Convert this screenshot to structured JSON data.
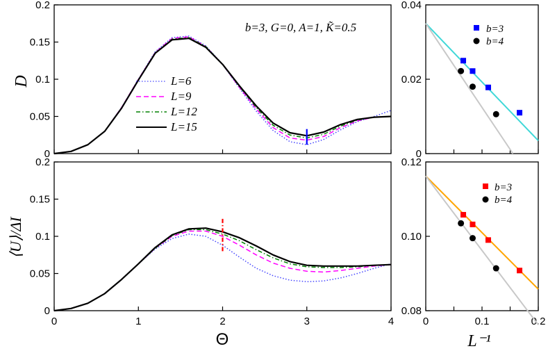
{
  "chart_data": [
    {
      "id": "top_left",
      "type": "line",
      "ylabel": "D",
      "xlabel": "",
      "annotation": "b=3, G=0, A=1, K̃=0.5",
      "xlim": [
        0,
        4
      ],
      "ylim": [
        0,
        0.2
      ],
      "xticks": [
        0,
        1,
        2,
        3,
        4
      ],
      "yticks": [
        "0",
        "0.05",
        "0.1",
        "0.15",
        "0.2"
      ],
      "legend": {
        "placement": "center-left",
        "entries": [
          "L=6",
          "L=9",
          "L=12",
          "L=15"
        ]
      },
      "marker": {
        "x": 3.0,
        "y_from": 0.012,
        "y_to": 0.033,
        "color": "#0000ff"
      },
      "series": [
        {
          "name": "L=6",
          "color": "#4444ff",
          "style": "dotted",
          "x": [
            0,
            0.2,
            0.4,
            0.6,
            0.8,
            1.0,
            1.2,
            1.4,
            1.6,
            1.8,
            2.0,
            2.2,
            2.4,
            2.6,
            2.8,
            3.0,
            3.2,
            3.4,
            3.6,
            3.8,
            4.0
          ],
          "y": [
            0,
            0.003,
            0.012,
            0.03,
            0.062,
            0.1,
            0.137,
            0.156,
            0.158,
            0.145,
            0.12,
            0.088,
            0.057,
            0.031,
            0.016,
            0.012,
            0.019,
            0.032,
            0.043,
            0.05,
            0.058
          ]
        },
        {
          "name": "L=9",
          "color": "#ff00ff",
          "style": "dashed",
          "x": [
            0,
            0.2,
            0.4,
            0.6,
            0.8,
            1.0,
            1.2,
            1.4,
            1.6,
            1.8,
            2.0,
            2.2,
            2.4,
            2.6,
            2.8,
            3.0,
            3.2,
            3.4,
            3.6,
            3.8,
            4.0
          ],
          "y": [
            0,
            0.003,
            0.012,
            0.03,
            0.062,
            0.1,
            0.136,
            0.155,
            0.157,
            0.144,
            0.12,
            0.089,
            0.06,
            0.035,
            0.021,
            0.018,
            0.023,
            0.035,
            0.044,
            0.049,
            0.05
          ]
        },
        {
          "name": "L=12",
          "color": "#008000",
          "style": "dashdot",
          "x": [
            0,
            0.2,
            0.4,
            0.6,
            0.8,
            1.0,
            1.2,
            1.4,
            1.6,
            1.8,
            2.0,
            2.2,
            2.4,
            2.6,
            2.8,
            3.0,
            3.2,
            3.4,
            3.6,
            3.8,
            4.0
          ],
          "y": [
            0,
            0.003,
            0.012,
            0.03,
            0.061,
            0.099,
            0.135,
            0.154,
            0.156,
            0.144,
            0.12,
            0.09,
            0.062,
            0.038,
            0.025,
            0.021,
            0.026,
            0.037,
            0.045,
            0.049,
            0.05
          ]
        },
        {
          "name": "L=15",
          "color": "#000000",
          "style": "solid",
          "x": [
            0,
            0.2,
            0.4,
            0.6,
            0.8,
            1.0,
            1.2,
            1.4,
            1.6,
            1.8,
            2.0,
            2.2,
            2.4,
            2.6,
            2.8,
            3.0,
            3.2,
            3.4,
            3.6,
            3.8,
            4.0
          ],
          "y": [
            0,
            0.003,
            0.012,
            0.03,
            0.061,
            0.099,
            0.135,
            0.153,
            0.155,
            0.143,
            0.12,
            0.091,
            0.064,
            0.041,
            0.028,
            0.024,
            0.029,
            0.039,
            0.046,
            0.049,
            0.05
          ]
        }
      ]
    },
    {
      "id": "bottom_left",
      "type": "line",
      "ylabel": "⟨U⟩/ΔI",
      "xlabel": "Θ",
      "xlim": [
        0,
        4
      ],
      "ylim": [
        0,
        0.2
      ],
      "xticks": [
        0,
        1,
        2,
        3,
        4
      ],
      "yticks": [
        "0",
        "0.05",
        "0.1",
        "0.15",
        "0.2"
      ],
      "marker": {
        "x": 2.0,
        "y_from": 0.08,
        "y_to": 0.126,
        "color": "#ff0000"
      },
      "series": [
        {
          "name": "L=6",
          "color": "#4444ff",
          "style": "dotted",
          "x": [
            0,
            0.2,
            0.4,
            0.6,
            0.8,
            1.0,
            1.2,
            1.4,
            1.6,
            1.8,
            2.0,
            2.2,
            2.4,
            2.6,
            2.8,
            3.0,
            3.2,
            3.4,
            3.6,
            3.8,
            4.0
          ],
          "y": [
            0,
            0.003,
            0.01,
            0.023,
            0.042,
            0.063,
            0.083,
            0.097,
            0.103,
            0.1,
            0.088,
            0.072,
            0.057,
            0.047,
            0.041,
            0.039,
            0.04,
            0.044,
            0.05,
            0.057,
            0.063
          ]
        },
        {
          "name": "L=9",
          "color": "#ff00ff",
          "style": "dashed",
          "x": [
            0,
            0.2,
            0.4,
            0.6,
            0.8,
            1.0,
            1.2,
            1.4,
            1.6,
            1.8,
            2.0,
            2.2,
            2.4,
            2.6,
            2.8,
            3.0,
            3.2,
            3.4,
            3.6,
            3.8,
            4.0
          ],
          "y": [
            0,
            0.003,
            0.01,
            0.023,
            0.042,
            0.063,
            0.084,
            0.1,
            0.107,
            0.107,
            0.1,
            0.088,
            0.075,
            0.064,
            0.057,
            0.053,
            0.052,
            0.054,
            0.057,
            0.06,
            0.062
          ]
        },
        {
          "name": "L=12",
          "color": "#008000",
          "style": "dashdot",
          "x": [
            0,
            0.2,
            0.4,
            0.6,
            0.8,
            1.0,
            1.2,
            1.4,
            1.6,
            1.8,
            2.0,
            2.2,
            2.4,
            2.6,
            2.8,
            3.0,
            3.2,
            3.4,
            3.6,
            3.8,
            4.0
          ],
          "y": [
            0,
            0.003,
            0.01,
            0.023,
            0.042,
            0.063,
            0.084,
            0.101,
            0.109,
            0.109,
            0.103,
            0.094,
            0.082,
            0.071,
            0.063,
            0.059,
            0.058,
            0.058,
            0.059,
            0.061,
            0.062
          ]
        },
        {
          "name": "L=15",
          "color": "#000000",
          "style": "solid",
          "x": [
            0,
            0.2,
            0.4,
            0.6,
            0.8,
            1.0,
            1.2,
            1.4,
            1.6,
            1.8,
            2.0,
            2.2,
            2.4,
            2.6,
            2.8,
            3.0,
            3.2,
            3.4,
            3.6,
            3.8,
            4.0
          ],
          "y": [
            0,
            0.003,
            0.01,
            0.023,
            0.042,
            0.063,
            0.085,
            0.102,
            0.11,
            0.111,
            0.106,
            0.098,
            0.087,
            0.075,
            0.066,
            0.061,
            0.06,
            0.06,
            0.06,
            0.061,
            0.062
          ]
        }
      ]
    },
    {
      "id": "top_right",
      "type": "scatter",
      "xlim": [
        0,
        0.2
      ],
      "ylim": [
        0,
        0.04
      ],
      "xticks": [],
      "yticks": [
        "0",
        "0.02",
        "0.04"
      ],
      "legend": {
        "placement": "top-right",
        "entries": [
          "b=3",
          "b=4"
        ]
      },
      "series": [
        {
          "name": "b=3",
          "marker": "square",
          "color": "#0000ff",
          "x": [
            0.0667,
            0.0833,
            0.1111,
            0.1667
          ],
          "y": [
            0.025,
            0.0222,
            0.0178,
            0.011
          ]
        },
        {
          "name": "b=4",
          "marker": "circle",
          "color": "#000000",
          "x": [
            0.0625,
            0.0833,
            0.125
          ],
          "y": [
            0.0222,
            0.018,
            0.0106
          ]
        }
      ],
      "fits": [
        {
          "name": "fit b=3",
          "color": "#40d8d8",
          "x": [
            0,
            0.2
          ],
          "y": [
            0.035,
            0.0035
          ]
        },
        {
          "name": "fit b=4",
          "color": "#c8c8c8",
          "x": [
            0,
            0.155
          ],
          "y": [
            0.035,
            0.0
          ]
        }
      ]
    },
    {
      "id": "bottom_right",
      "type": "scatter",
      "xlabel": "L⁻¹",
      "xlim": [
        0,
        0.2
      ],
      "ylim": [
        0.08,
        0.12
      ],
      "xticks": [
        "0",
        "0.1",
        "0.2"
      ],
      "yticks": [
        "0.08",
        "0.10",
        "0.12"
      ],
      "legend": {
        "placement": "top-right",
        "entries": [
          "b=3",
          "b=4"
        ]
      },
      "series": [
        {
          "name": "b=3",
          "marker": "square",
          "color": "#ff0000",
          "x": [
            0.0667,
            0.0833,
            0.1111,
            0.1667
          ],
          "y": [
            0.1058,
            0.1032,
            0.099,
            0.0908
          ]
        },
        {
          "name": "b=4",
          "marker": "circle",
          "color": "#000000",
          "x": [
            0.0625,
            0.0833,
            0.125
          ],
          "y": [
            0.1035,
            0.0995,
            0.0914
          ]
        }
      ],
      "fits": [
        {
          "name": "fit b=3",
          "color": "#ffa500",
          "x": [
            0,
            0.2
          ],
          "y": [
            0.1162,
            0.0858
          ]
        },
        {
          "name": "fit b=4",
          "color": "#c8c8c8",
          "x": [
            0,
            0.2
          ],
          "y": [
            0.1162,
            0.0762
          ]
        }
      ]
    }
  ]
}
